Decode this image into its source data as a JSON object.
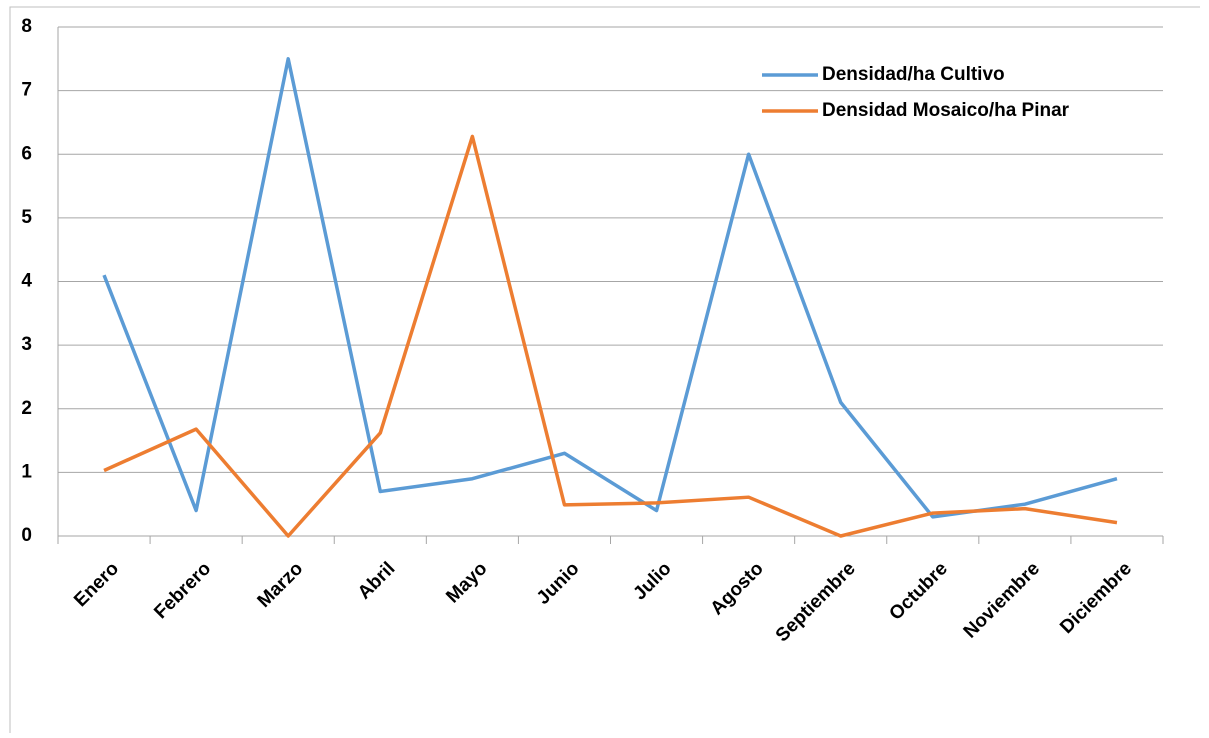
{
  "chart_data": {
    "type": "line",
    "categories": [
      "Enero",
      "Febrero",
      "Marzo",
      "Abril",
      "Mayo",
      "Junio",
      "Julio",
      "Agosto",
      "Septiembre",
      "Octubre",
      "Noviembre",
      "Diciembre"
    ],
    "series": [
      {
        "name": "Densidad/ha Cultivo",
        "color": "#5b9bd5",
        "values": [
          4.1,
          0.4,
          7.5,
          0.7,
          0.9,
          1.3,
          0.4,
          6.0,
          2.1,
          0.3,
          0.5,
          0.9
        ]
      },
      {
        "name": "Densidad Mosaico/ha Pinar",
        "color": "#ed7d31",
        "values": [
          1.03,
          1.68,
          0,
          1.62,
          6.28,
          0.49,
          0.52,
          0.61,
          0,
          0.36,
          0.43,
          0.21
        ]
      }
    ],
    "ylim": [
      0,
      8
    ],
    "yticks": [
      0,
      1,
      2,
      3,
      4,
      5,
      6,
      7,
      8
    ],
    "grid": true,
    "legend": "upper right"
  }
}
